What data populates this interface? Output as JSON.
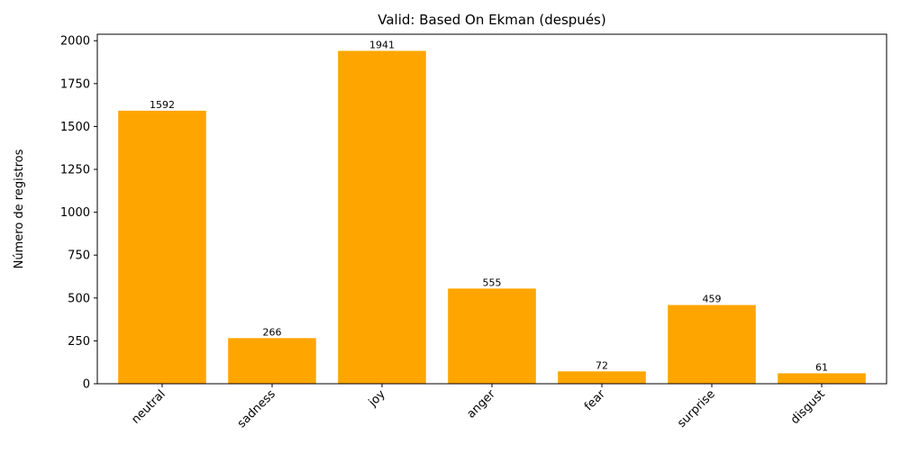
{
  "chart_data": {
    "type": "bar",
    "title": "Valid: Based On Ekman (después)",
    "xlabel": "",
    "ylabel": "Número de registros",
    "categories": [
      "neutral",
      "sadness",
      "joy",
      "anger",
      "fear",
      "surprise",
      "disgust"
    ],
    "values": [
      1592,
      266,
      1941,
      555,
      72,
      459,
      61
    ],
    "data_labels": [
      "1592",
      "266",
      "1941",
      "555",
      "72",
      "459",
      "61"
    ],
    "ylim": [
      0,
      2038
    ],
    "yticks": [
      0,
      250,
      500,
      750,
      1000,
      1250,
      1500,
      1750,
      2000
    ],
    "ytick_labels": [
      "0",
      "250",
      "500",
      "750",
      "1000",
      "1250",
      "1500",
      "1750",
      "2000"
    ],
    "bar_color": "#ffa500",
    "grid": false,
    "legend": "none",
    "x_tick_rotation": "45 degrees"
  }
}
